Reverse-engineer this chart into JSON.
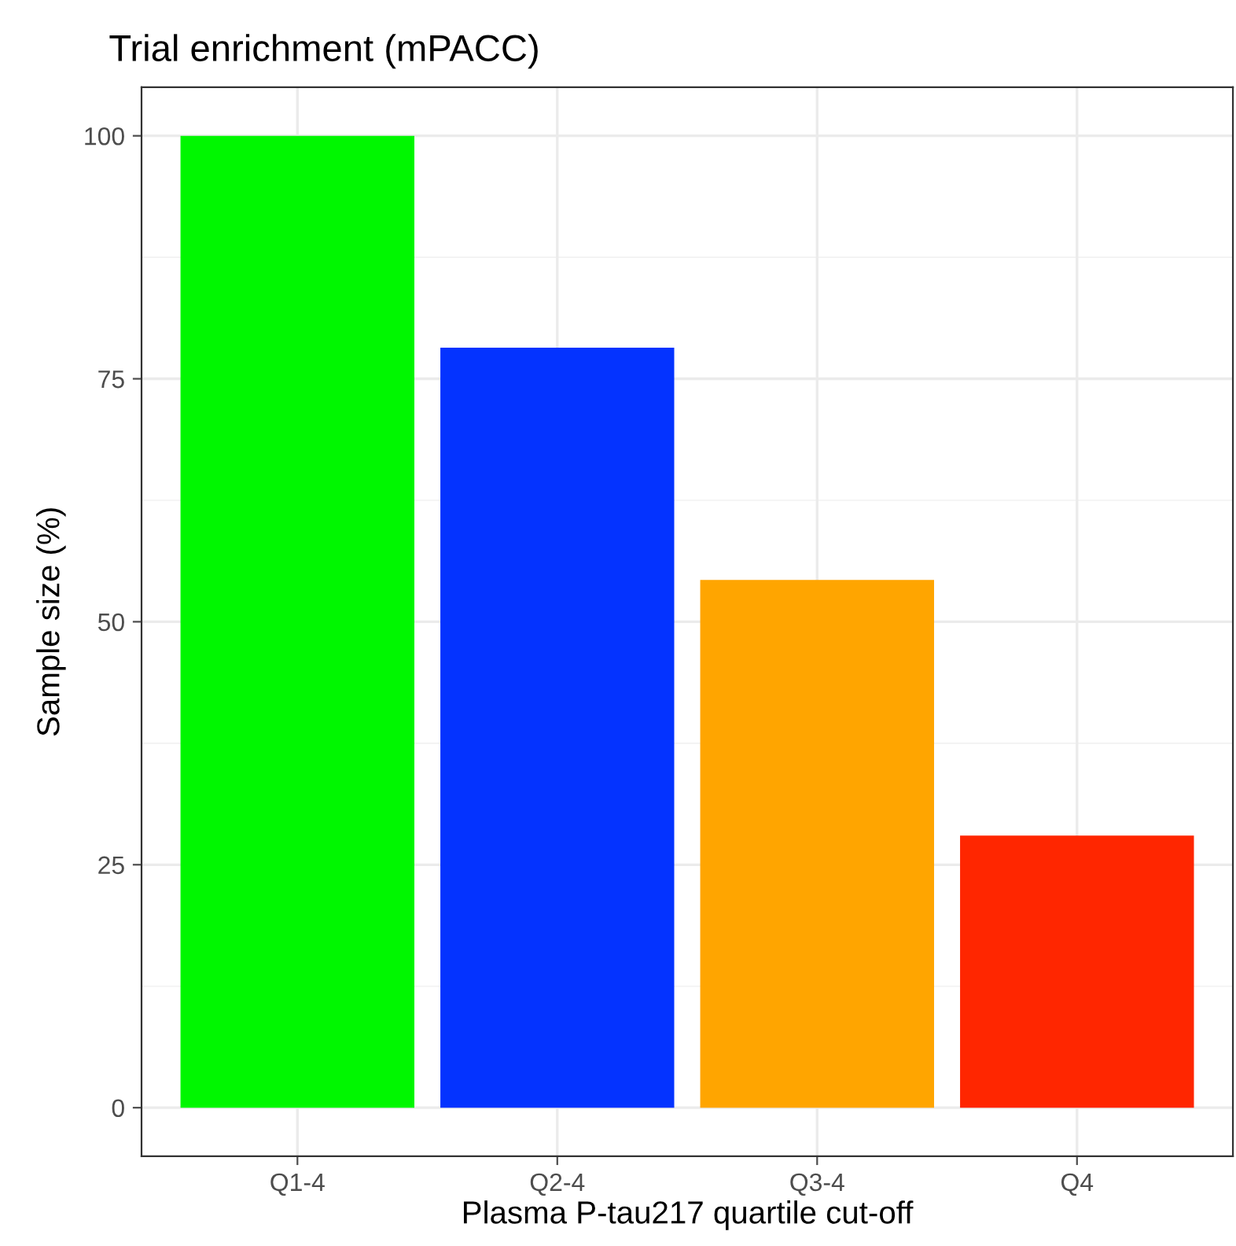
{
  "chart_data": {
    "type": "bar",
    "title": "Trial enrichment (mPACC)",
    "xlabel": "Plasma P-tau217 quartile cut-off",
    "ylabel": "Sample size (%)",
    "categories": [
      "Q1-4",
      "Q2-4",
      "Q3-4",
      "Q4"
    ],
    "values": [
      100,
      78.2,
      54.3,
      28
    ],
    "colors": [
      "#00f700",
      "#0433ff",
      "#ffa500",
      "#ff2600"
    ],
    "ylim": [
      -5,
      105
    ],
    "yticks": [
      0,
      25,
      50,
      75,
      100
    ],
    "grid": true
  }
}
